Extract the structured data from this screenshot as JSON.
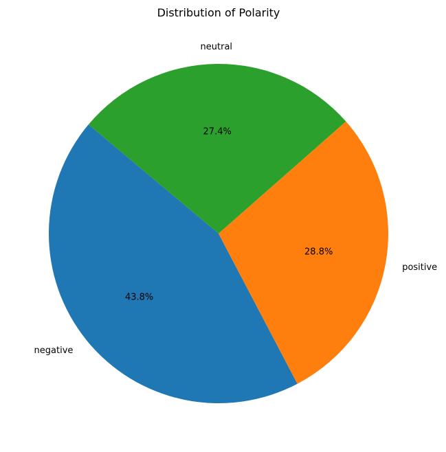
{
  "chart_data": {
    "type": "pie",
    "title": "Distribution of Polarity",
    "slices": [
      {
        "label": "negative",
        "value": 43.8,
        "pct_label": "43.8%",
        "color": "#1f77b4"
      },
      {
        "label": "positive",
        "value": 28.8,
        "pct_label": "28.8%",
        "color": "#ff7f0e"
      },
      {
        "label": "neutral",
        "value": 27.4,
        "pct_label": "27.4%",
        "color": "#2ca02c"
      }
    ],
    "start_angle_deg": 140,
    "direction": "counterclockwise",
    "legend": "none"
  }
}
